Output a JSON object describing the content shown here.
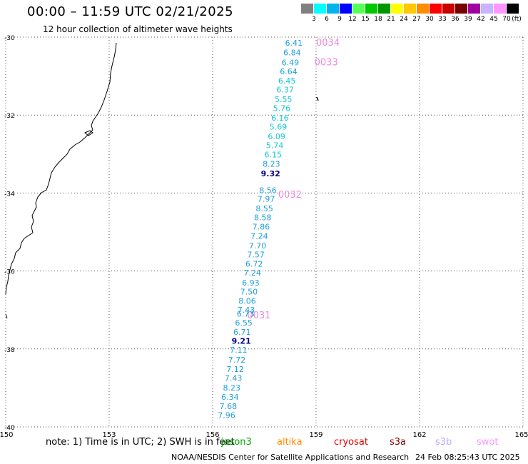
{
  "header": {
    "title": "00:00 – 11:59 UTC 02/21/2025",
    "subtitle": "12 hour collection of altimeter wave heights"
  },
  "legend": {
    "unit": "(ft)",
    "ticks": [
      "3",
      "6",
      "9",
      "12",
      "15",
      "18",
      "21",
      "24",
      "27",
      "30",
      "33",
      "36",
      "39",
      "42",
      "45",
      "70"
    ],
    "colors": [
      "#808080",
      "#00ffff",
      "#00b4f0",
      "#0000ff",
      "#55ff55",
      "#00c800",
      "#009600",
      "#ffff00",
      "#ffc800",
      "#ff8c00",
      "#ff0000",
      "#c80000",
      "#780000",
      "#a000a0",
      "#c8b4ff",
      "#ff96ff",
      "#000000"
    ]
  },
  "map": {
    "lon_ticks": [
      "150",
      "153",
      "156",
      "159",
      "162",
      "165"
    ],
    "lat_ticks": [
      "-30",
      "-32",
      "-34",
      "-36",
      "-38",
      "-40"
    ],
    "lon_range": [
      150,
      165
    ],
    "lat_range": [
      -30,
      -40
    ],
    "grid": "dotted",
    "satellite_color": "#ee88dd",
    "dark_value_color": "#00008b",
    "light_value_color": "#1ea0dc",
    "cyan_value_color": "#10c8d8",
    "labels": [
      {
        "text": "0034",
        "lon": 159.0,
        "lat": -30.0,
        "kind": "sat"
      },
      {
        "text": "0033",
        "lon": 158.95,
        "lat": -30.5,
        "kind": "sat"
      },
      {
        "text": "0032",
        "lon": 157.9,
        "lat": -33.9,
        "kind": "sat"
      },
      {
        "text": "0031",
        "lon": 157.0,
        "lat": -37.0,
        "kind": "sat"
      },
      {
        "text": "6.41",
        "lon": 158.1,
        "lat": -30.0,
        "kind": "light"
      },
      {
        "text": "6.84",
        "lon": 158.05,
        "lat": -30.25,
        "kind": "light"
      },
      {
        "text": "6.49",
        "lon": 158.0,
        "lat": -30.5,
        "kind": "light"
      },
      {
        "text": "6.64",
        "lon": 157.95,
        "lat": -30.73,
        "kind": "light"
      },
      {
        "text": "6.45",
        "lon": 157.9,
        "lat": -30.97,
        "kind": "cyan"
      },
      {
        "text": "6.37",
        "lon": 157.85,
        "lat": -31.2,
        "kind": "cyan"
      },
      {
        "text": "5.55",
        "lon": 157.8,
        "lat": -31.45,
        "kind": "cyan"
      },
      {
        "text": "5.76",
        "lon": 157.75,
        "lat": -31.68,
        "kind": "cyan"
      },
      {
        "text": "6.16",
        "lon": 157.7,
        "lat": -31.92,
        "kind": "cyan"
      },
      {
        "text": "5.69",
        "lon": 157.65,
        "lat": -32.15,
        "kind": "cyan"
      },
      {
        "text": "6.09",
        "lon": 157.6,
        "lat": -32.4,
        "kind": "cyan"
      },
      {
        "text": "5.74",
        "lon": 157.55,
        "lat": -32.63,
        "kind": "cyan"
      },
      {
        "text": "6.15",
        "lon": 157.5,
        "lat": -32.87,
        "kind": "cyan"
      },
      {
        "text": "8.23",
        "lon": 157.45,
        "lat": -33.1,
        "kind": "light"
      },
      {
        "text": "9.32",
        "lon": 157.4,
        "lat": -33.35,
        "kind": "dark"
      },
      {
        "text": "8.56",
        "lon": 157.35,
        "lat": -33.78,
        "kind": "light"
      },
      {
        "text": "7.97",
        "lon": 157.3,
        "lat": -34.0,
        "kind": "light"
      },
      {
        "text": "8.55",
        "lon": 157.25,
        "lat": -34.25,
        "kind": "light"
      },
      {
        "text": "8.58",
        "lon": 157.2,
        "lat": -34.48,
        "kind": "light"
      },
      {
        "text": "7.86",
        "lon": 157.15,
        "lat": -34.72,
        "kind": "light"
      },
      {
        "text": "7.24",
        "lon": 157.1,
        "lat": -34.95,
        "kind": "light"
      },
      {
        "text": "7.70",
        "lon": 157.05,
        "lat": -35.2,
        "kind": "light"
      },
      {
        "text": "7.57",
        "lon": 157.0,
        "lat": -35.43,
        "kind": "light"
      },
      {
        "text": "6.72",
        "lon": 156.95,
        "lat": -35.67,
        "kind": "light"
      },
      {
        "text": "7.24",
        "lon": 156.9,
        "lat": -35.9,
        "kind": "light"
      },
      {
        "text": "6.93",
        "lon": 156.85,
        "lat": -36.15,
        "kind": "light"
      },
      {
        "text": "7.50",
        "lon": 156.8,
        "lat": -36.38,
        "kind": "light"
      },
      {
        "text": "8.06",
        "lon": 156.75,
        "lat": -36.62,
        "kind": "light"
      },
      {
        "text": "7.43",
        "lon": 156.72,
        "lat": -36.85,
        "kind": "light"
      },
      {
        "text": "6.73",
        "lon": 156.7,
        "lat": -36.95,
        "kind": "light"
      },
      {
        "text": "6.55",
        "lon": 156.65,
        "lat": -37.18,
        "kind": "light"
      },
      {
        "text": "6.71",
        "lon": 156.6,
        "lat": -37.42,
        "kind": "light"
      },
      {
        "text": "9.21",
        "lon": 156.55,
        "lat": -37.65,
        "kind": "dark"
      },
      {
        "text": "7.11",
        "lon": 156.5,
        "lat": -37.88,
        "kind": "light"
      },
      {
        "text": "7.72",
        "lon": 156.45,
        "lat": -38.13,
        "kind": "light"
      },
      {
        "text": "7.12",
        "lon": 156.4,
        "lat": -38.37,
        "kind": "light"
      },
      {
        "text": "7.43",
        "lon": 156.35,
        "lat": -38.6,
        "kind": "light"
      },
      {
        "text": "8.23",
        "lon": 156.3,
        "lat": -38.85,
        "kind": "light"
      },
      {
        "text": "6.34",
        "lon": 156.25,
        "lat": -39.08,
        "kind": "light"
      },
      {
        "text": "7.68",
        "lon": 156.2,
        "lat": -39.32,
        "kind": "light"
      },
      {
        "text": "7.96",
        "lon": 156.15,
        "lat": -39.55,
        "kind": "light"
      }
    ]
  },
  "footer": {
    "note": "note:  1) Time is in UTC; 2) SWH is in feet",
    "satellites": [
      {
        "name": "jason3",
        "color": "#00a000"
      },
      {
        "name": "altika",
        "color": "#ff8c00"
      },
      {
        "name": "cryosat",
        "color": "#e00000"
      },
      {
        "name": "s3a",
        "color": "#800000"
      },
      {
        "name": "s3b",
        "color": "#c0a8ff"
      },
      {
        "name": "swot",
        "color": "#ff96ff"
      }
    ],
    "credit": "NOAA/NESDIS Center for Satellite Applications and Research",
    "timestamp": "24 Feb 08:25:43 UTC 2025"
  }
}
